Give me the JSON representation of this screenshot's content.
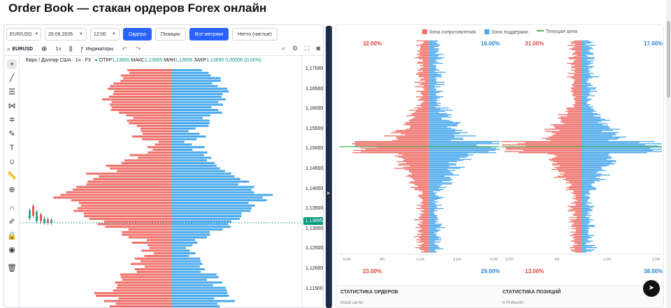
{
  "page": {
    "title": "Order Book — стакан ордеров Forex онлайн"
  },
  "toolbar": {
    "symbol_select": "EUR/USD",
    "date_select": "26.06.2026",
    "time_select": "12:00",
    "orders_button": "Ордера",
    "positions_button": "Позиции",
    "all_metrics_button": "Все метрики",
    "net_button": "Нетто (чистые)"
  },
  "chart_toolbar": {
    "symbol": "EURUSD",
    "interval": "1ч",
    "indicators": "Индикаторы"
  },
  "legend": {
    "instrument": "Евро / Доллар США · 1ч · FX",
    "open_label": "ОТКР",
    "open": "1,13895",
    "high_label": "МАКС",
    "high": "1,13895",
    "low_label": "МИН",
    "low": "1,13895",
    "close_label": "ЗАКР",
    "close": "1,13895",
    "change": "0,00000 (0,00%)"
  },
  "price_axis": {
    "ticks": [
      "1,17000",
      "1,16500",
      "1,16000",
      "1,15500",
      "1,15000",
      "1,14500",
      "1,14000",
      "1,13500",
      "1,13000",
      "1,12500",
      "1,12000",
      "1,11500"
    ],
    "current_price": "1,13895"
  },
  "order_book": {
    "legend": {
      "resistance": "Зона сопротивления",
      "support": "Зона поддержки",
      "current": "Текущая цена"
    },
    "orders_panel": {
      "top_left_pct": "32.00%",
      "top_right_pct": "16.00%",
      "bottom_left_pct": "23.00%",
      "bottom_right_pct": "29.00%",
      "x_ticks": [
        "0.6%",
        "0%",
        "0.1%",
        "0.6%",
        "0.6%"
      ]
    },
    "positions_panel": {
      "top_left_pct": "31.00%",
      "top_right_pct": "17.00%",
      "bottom_left_pct": "13.00%",
      "bottom_right_pct": "38.00%",
      "x_ticks": [
        "2.5%",
        "0%",
        "1.0%",
        "2.0%"
      ]
    },
    "stats": {
      "orders_title": "СТАТИСТИКА ОРДЕРОВ",
      "orders_sub": "ВЫШЕ ЦЕНЫ",
      "positions_title": "СТАТИСТИКА ПОЗИЦИЙ",
      "positions_sub": "В ПРИБЫЛИ"
    }
  },
  "colors": {
    "sell": "#f0706a",
    "buy": "#4aa8ec",
    "current_line": "#4caf50",
    "accent": "#2962ff"
  }
}
